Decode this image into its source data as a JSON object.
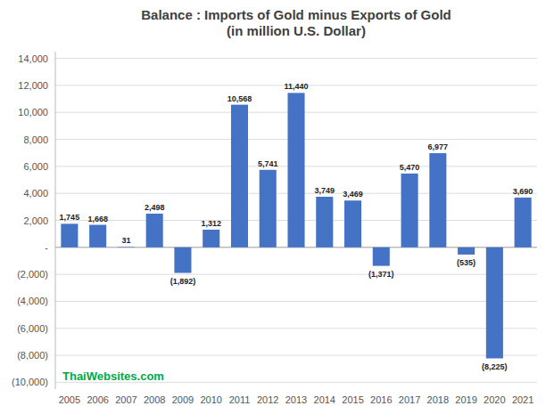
{
  "chart_data": {
    "type": "bar",
    "title": "Balance : Imports of Gold minus Exports of Gold\n(in million U.S. Dollar)",
    "categories": [
      "2005",
      "2006",
      "2007",
      "2008",
      "2009",
      "2010",
      "2011",
      "2012",
      "2013",
      "2014",
      "2015",
      "2016",
      "2017",
      "2018",
      "2019",
      "2020",
      "2021"
    ],
    "values": [
      1745,
      1668,
      31,
      2498,
      -1892,
      1312,
      10568,
      5741,
      11440,
      3749,
      3469,
      -1371,
      5470,
      6977,
      -535,
      -8225,
      3690
    ],
    "value_labels": [
      "1,745",
      "1,668",
      "31",
      "2,498",
      "(1,892)",
      "1,312",
      "10,568",
      "5,741",
      "11,440",
      "3,749",
      "3,469",
      "(1,371)",
      "5,470",
      "6,977",
      "(535)",
      "(8,225)",
      "3,690"
    ],
    "data_labels": true,
    "color": "#4472c4",
    "ylim": [
      -10500,
      14500
    ],
    "yticks": [
      {
        "value": -10000,
        "label": "(10,000)"
      },
      {
        "value": -8000,
        "label": "(8,000)"
      },
      {
        "value": -6000,
        "label": "(6,000)"
      },
      {
        "value": -4000,
        "label": "(4,000)"
      },
      {
        "value": -2000,
        "label": "(2,000)"
      },
      {
        "value": 0,
        "label": "-"
      },
      {
        "value": 2000,
        "label": "2,000"
      },
      {
        "value": 4000,
        "label": "4,000"
      },
      {
        "value": 6000,
        "label": "6,000"
      },
      {
        "value": 8000,
        "label": "8,000"
      },
      {
        "value": 10000,
        "label": "10,000"
      },
      {
        "value": 12000,
        "label": "12,000"
      },
      {
        "value": 14000,
        "label": "14,000"
      }
    ],
    "grid": true,
    "annotations": [
      {
        "text": "ThaiWebsites.com",
        "color": "#00aa44"
      }
    ]
  }
}
